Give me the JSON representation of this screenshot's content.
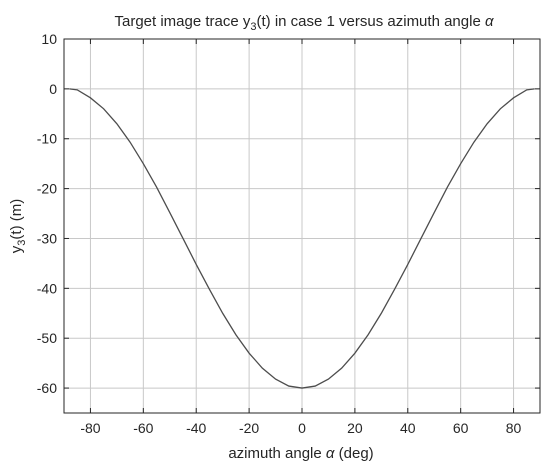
{
  "chart_data": {
    "type": "line",
    "title": {
      "main": "Target image trace y",
      "sub": "3",
      "rest": "(t) in case 1 versus azimuth angle ",
      "symbol": "α"
    },
    "xlabel": {
      "main": "azimuth angle ",
      "symbol": "α",
      "rest": " (deg)"
    },
    "ylabel": {
      "main": "y",
      "sub": "3",
      "rest": "(t) (m)"
    },
    "xlim": [
      -90,
      90
    ],
    "ylim": [
      -65,
      10
    ],
    "xticks": [
      -80,
      -60,
      -40,
      -20,
      0,
      20,
      40,
      60,
      80
    ],
    "yticks": [
      -60,
      -50,
      -40,
      -30,
      -20,
      -10,
      0,
      10
    ],
    "xtick_labels": [
      "-80",
      "-60",
      "-40",
      "-20",
      "0",
      "20",
      "40",
      "60",
      "80"
    ],
    "ytick_labels": [
      "-60",
      "-50",
      "-40",
      "-30",
      "-20",
      "-10",
      "0",
      "10"
    ],
    "grid": true,
    "series": [
      {
        "color": "#4d4d4d",
        "x": [
          -88,
          -85,
          -80,
          -75,
          -70,
          -65,
          -60,
          -55,
          -50,
          -45,
          -40,
          -35,
          -30,
          -25,
          -20,
          -15,
          -10,
          -5,
          0,
          5,
          10,
          15,
          20,
          25,
          30,
          35,
          40,
          45,
          50,
          55,
          60,
          65,
          70,
          75,
          80,
          85,
          88
        ],
        "y": [
          0.0,
          -0.2,
          -1.8,
          -4.0,
          -7.0,
          -10.7,
          -15.0,
          -19.7,
          -24.8,
          -30.0,
          -35.2,
          -40.2,
          -45.0,
          -49.3,
          -53.0,
          -56.0,
          -58.2,
          -59.6,
          -60.0,
          -59.6,
          -58.2,
          -56.0,
          -53.0,
          -49.3,
          -45.0,
          -40.2,
          -35.2,
          -30.0,
          -24.8,
          -19.7,
          -15.0,
          -10.7,
          -7.0,
          -4.0,
          -1.8,
          -0.2,
          0.0
        ]
      }
    ]
  }
}
